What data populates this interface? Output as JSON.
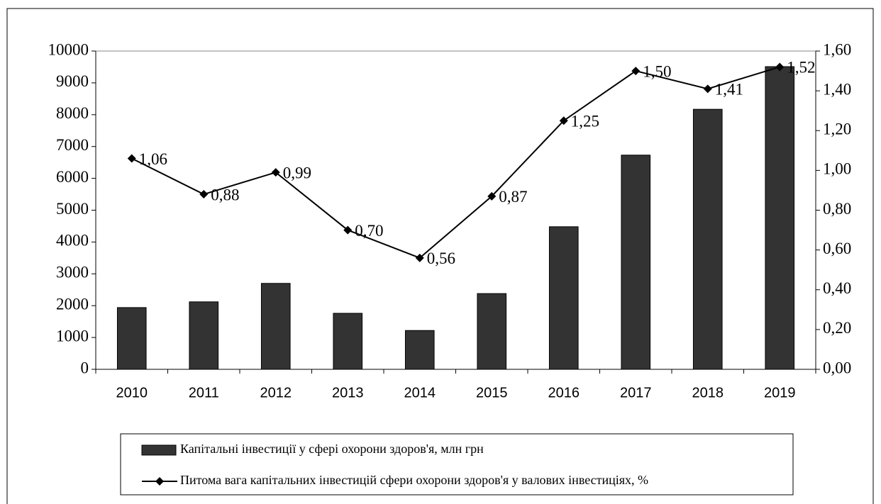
{
  "chart_data": {
    "type": "bar",
    "categories": [
      "2010",
      "2011",
      "2012",
      "2013",
      "2014",
      "2015",
      "2016",
      "2017",
      "2018",
      "2019"
    ],
    "series": [
      {
        "name": "Капітальні інвестиції  у сфері охорони здоров'я, млн грн",
        "type": "bar",
        "color": "#333333",
        "values": [
          1940,
          2120,
          2700,
          1760,
          1220,
          2380,
          4480,
          6730,
          8170,
          9510
        ]
      },
      {
        "name": "Питома вага капітальних  інвестицій  сфери охорони здоров'я  у валових інвестиціях,  %",
        "type": "line",
        "axis": "y2",
        "color": "#000000",
        "marker": "diamond",
        "values": [
          1.06,
          0.88,
          0.99,
          0.7,
          0.56,
          0.87,
          1.25,
          1.5,
          1.41,
          1.52
        ],
        "value_labels": [
          "1,06",
          "0,88",
          "0,99",
          "0,70",
          "0,56",
          "0,87",
          "1,25",
          "1,50",
          "1,41",
          "1,52"
        ]
      }
    ],
    "ylim": [
      0,
      10000
    ],
    "yticks": [
      0,
      1000,
      2000,
      3000,
      4000,
      5000,
      6000,
      7000,
      8000,
      9000,
      10000
    ],
    "y2lim": [
      0,
      1.6
    ],
    "y2ticks": [
      {
        "value": 0,
        "label": "0,00"
      },
      {
        "value": 0.2,
        "label": "0,20"
      },
      {
        "value": 0.4,
        "label": "0,40"
      },
      {
        "value": 0.6,
        "label": "0,60"
      },
      {
        "value": 0.8,
        "label": "0,80"
      },
      {
        "value": 1.0,
        "label": "1,00"
      },
      {
        "value": 1.2,
        "label": "1,20"
      },
      {
        "value": 1.4,
        "label": "1,40"
      },
      {
        "value": 1.6,
        "label": "1,60"
      }
    ],
    "legend": "bottom",
    "grid": false
  }
}
